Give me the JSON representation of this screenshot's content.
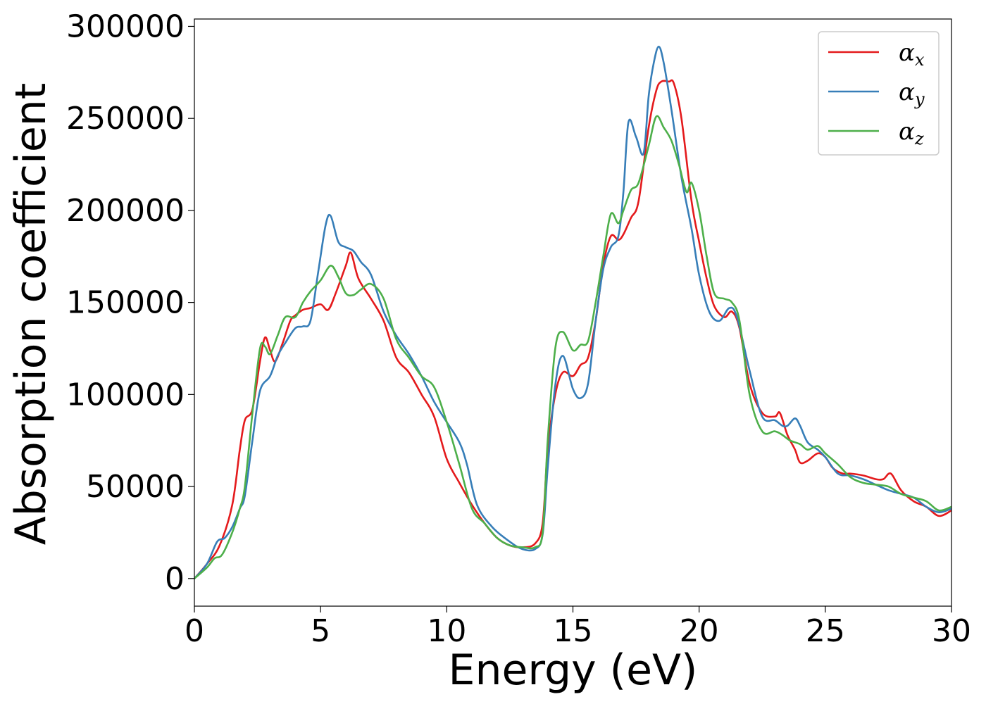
{
  "chart_data": {
    "type": "line",
    "title": "",
    "xlabel": "Energy (eV)",
    "ylabel": "Absorption coefficient",
    "xlim": [
      0,
      30
    ],
    "ylim": [
      -15000,
      304000
    ],
    "xticks": [
      0,
      5,
      10,
      15,
      20,
      25,
      30
    ],
    "xtick_labels": [
      "0",
      "5",
      "10",
      "15",
      "20",
      "25",
      "30"
    ],
    "yticks": [
      0,
      50000,
      100000,
      150000,
      200000,
      250000,
      300000
    ],
    "ytick_labels": [
      "0",
      "50000",
      "100000",
      "150000",
      "200000",
      "250000",
      "300000"
    ],
    "grid": false,
    "legend_position": "top-right",
    "series": [
      {
        "name": "α",
        "subscript": "x",
        "color": "#e41a1c",
        "x": [
          0,
          0.5,
          1,
          1.5,
          1.8,
          2,
          2.3,
          2.6,
          2.8,
          3,
          3.2,
          3.5,
          3.8,
          4,
          4.3,
          4.6,
          5,
          5.3,
          5.6,
          6,
          6.2,
          6.5,
          7,
          7.5,
          8,
          8.5,
          9,
          9.5,
          10,
          10.5,
          11,
          11.5,
          12,
          12.5,
          13,
          13.5,
          13.8,
          14,
          14.3,
          14.6,
          15,
          15.3,
          15.6,
          15.9,
          16.2,
          16.5,
          16.8,
          17,
          17.3,
          17.6,
          18,
          18.3,
          18.5,
          18.8,
          19,
          19.3,
          19.7,
          20,
          20.3,
          20.6,
          21,
          21.3,
          21.6,
          22,
          22.5,
          23,
          23.2,
          23.5,
          23.8,
          24,
          24.3,
          24.7,
          25,
          25.3,
          25.7,
          26,
          26.5,
          27,
          27.3,
          27.6,
          28,
          28.5,
          29,
          29.5,
          30
        ],
        "values": [
          0,
          8000,
          18000,
          40000,
          70000,
          86000,
          92000,
          118000,
          131000,
          124000,
          118000,
          128000,
          140000,
          143000,
          146000,
          147000,
          149000,
          146000,
          155000,
          170000,
          177000,
          163000,
          152000,
          140000,
          120000,
          112000,
          100000,
          88000,
          65000,
          52000,
          40000,
          30000,
          22000,
          18000,
          17000,
          19000,
          30000,
          70000,
          100000,
          112000,
          110000,
          116000,
          120000,
          140000,
          170000,
          186000,
          184000,
          187000,
          196000,
          205000,
          245000,
          265000,
          270000,
          270000,
          269000,
          250000,
          205000,
          183000,
          163000,
          148000,
          142000,
          145000,
          136000,
          106000,
          90000,
          88000,
          90000,
          78000,
          70000,
          63000,
          64000,
          68000,
          66000,
          60000,
          57000,
          57000,
          56000,
          54000,
          54000,
          57000,
          48000,
          42000,
          39000,
          34000,
          37000
        ]
      },
      {
        "name": "α",
        "subscript": "y",
        "color": "#377eb8",
        "x": [
          0,
          0.5,
          0.9,
          1.2,
          1.5,
          1.8,
          2,
          2.3,
          2.6,
          3,
          3.3,
          3.6,
          4,
          4.3,
          4.6,
          4.9,
          5.2,
          5.4,
          5.7,
          6,
          6.3,
          6.6,
          7,
          7.5,
          8,
          8.5,
          9,
          9.5,
          10,
          10.5,
          10.8,
          11.2,
          11.8,
          12.5,
          13,
          13.5,
          13.8,
          14,
          14.3,
          14.6,
          15,
          15.3,
          15.6,
          15.9,
          16.2,
          16.5,
          16.8,
          17,
          17.2,
          17.5,
          17.8,
          18,
          18.2,
          18.4,
          18.6,
          18.9,
          19.3,
          19.7,
          20,
          20.4,
          20.8,
          21.2,
          21.5,
          22,
          22.5,
          23,
          23.3,
          23.5,
          23.8,
          24,
          24.3,
          24.7,
          25,
          25.5,
          26,
          26.5,
          27,
          27.5,
          28,
          28.5,
          29,
          29.5,
          30
        ],
        "values": [
          0,
          8000,
          20000,
          22000,
          28000,
          38000,
          45000,
          75000,
          102000,
          110000,
          121000,
          128000,
          136000,
          137000,
          140000,
          166000,
          192000,
          197000,
          183000,
          180000,
          178000,
          172000,
          165000,
          145000,
          132000,
          122000,
          110000,
          96000,
          85000,
          74000,
          62000,
          40000,
          28000,
          20000,
          16000,
          16000,
          24000,
          60000,
          105000,
          121000,
          103000,
          98000,
          106000,
          140000,
          168000,
          180000,
          186000,
          210000,
          248000,
          240000,
          231000,
          262000,
          280000,
          289000,
          280000,
          255000,
          218000,
          190000,
          165000,
          145000,
          140000,
          147000,
          142000,
          113000,
          88000,
          86000,
          83000,
          83000,
          87000,
          83000,
          74000,
          70000,
          66000,
          57000,
          56000,
          54000,
          51000,
          48000,
          46000,
          44000,
          39000,
          36000,
          38000
        ]
      },
      {
        "name": "α",
        "subscript": "z",
        "color": "#4daf4a",
        "x": [
          0,
          0.5,
          0.8,
          1.1,
          1.5,
          1.8,
          2,
          2.3,
          2.6,
          2.8,
          3,
          3.3,
          3.6,
          4,
          4.3,
          4.6,
          5,
          5.4,
          5.7,
          6,
          6.3,
          6.6,
          7,
          7.5,
          8,
          8.5,
          9,
          9.5,
          10,
          10.5,
          11,
          11.5,
          12,
          12.5,
          13,
          13.5,
          13.8,
          14,
          14.3,
          14.6,
          15,
          15.3,
          15.6,
          15.9,
          16.2,
          16.5,
          16.8,
          17,
          17.3,
          17.6,
          18,
          18.3,
          18.6,
          18.9,
          19.2,
          19.5,
          19.7,
          20,
          20.3,
          20.6,
          21,
          21.3,
          21.6,
          22,
          22.5,
          23,
          23.3,
          23.6,
          24,
          24.3,
          24.7,
          25,
          25.5,
          26,
          26.5,
          27,
          27.5,
          28,
          28.5,
          29,
          29.5,
          30
        ],
        "values": [
          0,
          6000,
          11000,
          13000,
          25000,
          38000,
          50000,
          90000,
          125000,
          126000,
          122000,
          132000,
          142000,
          142000,
          150000,
          156000,
          162000,
          170000,
          164000,
          155000,
          154000,
          157000,
          160000,
          152000,
          130000,
          120000,
          110000,
          104000,
          85000,
          62000,
          38000,
          30000,
          22000,
          18000,
          17000,
          17000,
          25000,
          75000,
          125000,
          134000,
          124000,
          127000,
          129000,
          150000,
          175000,
          198000,
          193000,
          200000,
          211000,
          215000,
          235000,
          251000,
          245000,
          238000,
          225000,
          210000,
          215000,
          200000,
          175000,
          155000,
          152000,
          150000,
          140000,
          100000,
          80000,
          80000,
          78000,
          75000,
          73000,
          70000,
          72000,
          68000,
          62000,
          55000,
          52000,
          51000,
          50000,
          46000,
          44000,
          42000,
          37000,
          39000
        ]
      }
    ]
  }
}
